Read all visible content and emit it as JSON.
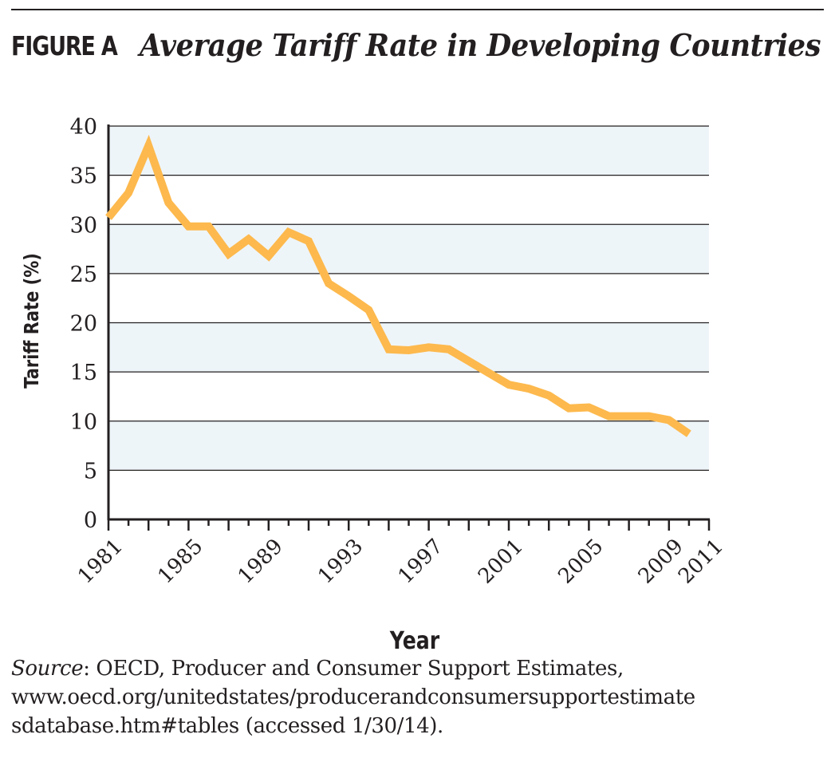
{
  "header": {
    "figure_label": "FIGURE A",
    "title": "Average Tariff Rate in Developing Countries"
  },
  "chart_data": {
    "type": "line",
    "title": "Average Tariff Rate in Developing Countries",
    "xlabel": "Year",
    "ylabel": "Tariff Rate (%)",
    "xlim": [
      1981,
      2011
    ],
    "ylim": [
      0,
      40
    ],
    "x_ticks": [
      1981,
      1985,
      1989,
      1993,
      1997,
      2001,
      2005,
      2009,
      2011
    ],
    "y_ticks": [
      0,
      5,
      10,
      15,
      20,
      25,
      30,
      35,
      40
    ],
    "background_bands": "alternating light blue / white between y gridlines",
    "grid": true,
    "line_color": "#FDB94D",
    "band_color": "#EEF5F9",
    "series": [
      {
        "x": [
          1981,
          1982,
          1983,
          1984,
          1985,
          1986,
          1987,
          1988,
          1989,
          1990,
          1991,
          1992,
          1993,
          1994,
          1995,
          1996,
          1997,
          1998,
          1999,
          2000,
          2001,
          2002,
          2003,
          2004,
          2005,
          2006,
          2007,
          2008,
          2009,
          2010
        ],
        "values": [
          30.7,
          33.2,
          38.0,
          32.2,
          29.8,
          29.8,
          27.0,
          28.5,
          26.8,
          29.2,
          28.3,
          24.0,
          22.7,
          21.3,
          17.3,
          17.2,
          17.5,
          17.3,
          16.1,
          14.9,
          13.7,
          13.3,
          12.6,
          11.3,
          11.4,
          10.5,
          10.5,
          10.5,
          10.1,
          8.7
        ]
      }
    ]
  },
  "footer": {
    "source_label": "Source",
    "source_line1": ": OECD, Producer and Consumer Support Estimates,",
    "source_line2": "www.oecd.org/unitedstates/producerandconsumersupportestimate",
    "source_line3": "sdatabase.htm#tables (accessed 1/30/14)."
  }
}
